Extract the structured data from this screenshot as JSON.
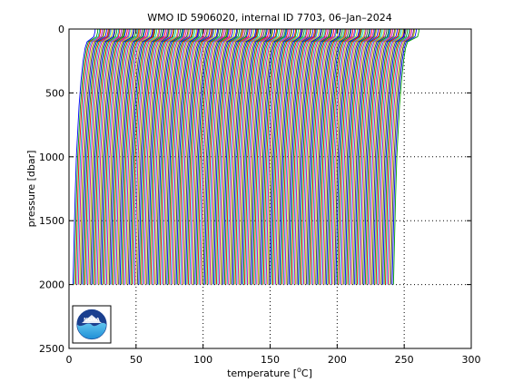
{
  "chart_data": {
    "type": "line",
    "title": "WMO ID 5906020, internal ID 7703, 06–Jan–2024",
    "xlabel_prefix": "temperature [",
    "xlabel_unit": "o",
    "xlabel_suffix": "C]",
    "ylabel": "pressure [dbar]",
    "xlim": [
      0,
      300
    ],
    "ylim": [
      0,
      2500
    ],
    "y_reversed": true,
    "grid": true,
    "grid_style": "dotted",
    "x_ticks": [
      0,
      50,
      100,
      150,
      200,
      250,
      300
    ],
    "y_ticks": [
      0,
      500,
      1000,
      1500,
      2000,
      2500
    ],
    "series_description_visible": false,
    "profile_count": 240,
    "profile_offset_step": 1,
    "profile_shape": {
      "pressure": [
        0,
        20,
        60,
        100,
        150,
        250,
        400,
        600,
        800,
        1000,
        1300,
        1600,
        2000
      ],
      "temperature": [
        19.5,
        19.4,
        18.5,
        13.5,
        12.0,
        10.5,
        9.0,
        7.5,
        6.5,
        5.5,
        4.6,
        3.9,
        3.0
      ]
    },
    "colors": [
      "#0000ff",
      "#00a000",
      "#ff0000",
      "#00bfbf",
      "#bf00bf",
      "#bfbf00",
      "#404040"
    ]
  },
  "logo": {
    "name": "noaa-logo",
    "text": "NOAA"
  }
}
